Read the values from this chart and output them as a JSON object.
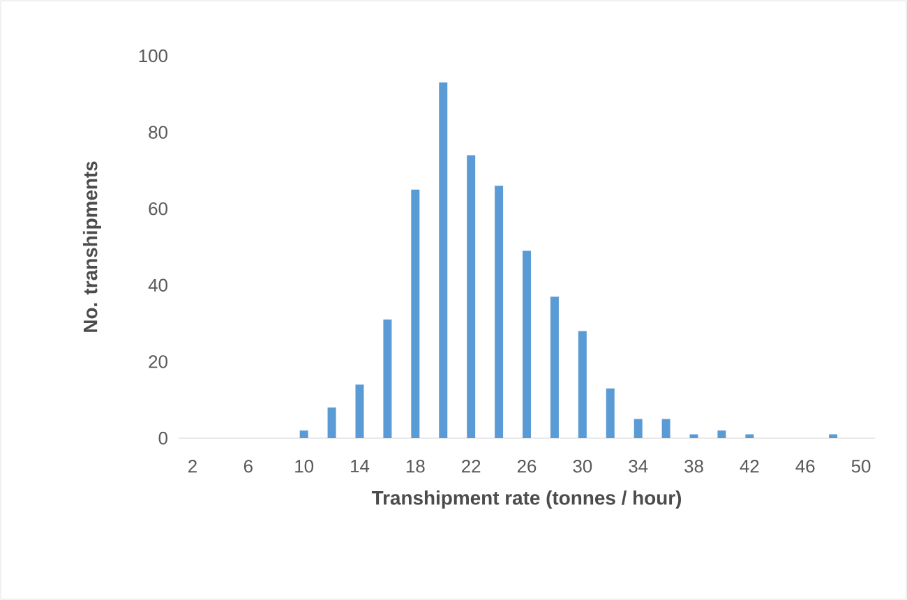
{
  "chart_data": {
    "type": "bar",
    "xlabel": "Transhipment rate (tonnes / hour)",
    "ylabel": "No. transhipments",
    "categories": [
      "2",
      null,
      "6",
      null,
      "10",
      null,
      "14",
      null,
      "18",
      null,
      "22",
      null,
      "26",
      null,
      "30",
      null,
      "34",
      null,
      "38",
      null,
      "42",
      null,
      "46",
      null,
      "50"
    ],
    "values": [
      0,
      0,
      0,
      0,
      2,
      8,
      14,
      31,
      65,
      93,
      74,
      66,
      49,
      37,
      28,
      13,
      5,
      5,
      1,
      2,
      1,
      0,
      0,
      1,
      0
    ],
    "color": "#5b9bd5",
    "ylim": [
      0,
      100
    ],
    "yticks": [
      0,
      20,
      40,
      60,
      80,
      100
    ]
  }
}
